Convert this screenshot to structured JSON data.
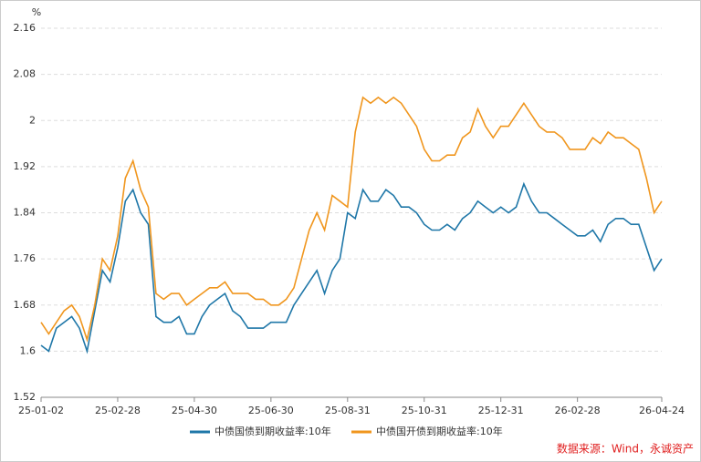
{
  "chart_data": {
    "type": "line",
    "y_label": "%",
    "categories": [
      "25-01-02",
      null,
      null,
      null,
      null,
      null,
      null,
      null,
      null,
      null,
      "25-02-28",
      null,
      null,
      null,
      null,
      null,
      null,
      null,
      null,
      null,
      "25-04-30",
      null,
      null,
      null,
      null,
      null,
      null,
      null,
      null,
      null,
      "25-06-30",
      null,
      null,
      null,
      null,
      null,
      null,
      null,
      null,
      null,
      "25-08-31",
      null,
      null,
      null,
      null,
      null,
      null,
      null,
      null,
      null,
      "25-10-31",
      null,
      null,
      null,
      null,
      null,
      null,
      null,
      null,
      null,
      "25-12-31",
      null,
      null,
      null,
      null,
      null,
      null,
      null,
      null,
      null,
      "26-02-28",
      null,
      null,
      null,
      null,
      null,
      null,
      null,
      null,
      null,
      null,
      "26-04-24"
    ],
    "series": [
      {
        "name": "中债国债到期收益率:10年",
        "color": "#1f77a8",
        "values": [
          1.61,
          1.6,
          1.64,
          1.65,
          1.66,
          1.64,
          1.6,
          1.67,
          1.74,
          1.72,
          1.78,
          1.86,
          1.88,
          1.84,
          1.82,
          1.66,
          1.65,
          1.65,
          1.66,
          1.63,
          1.63,
          1.66,
          1.68,
          1.69,
          1.7,
          1.67,
          1.66,
          1.64,
          1.64,
          1.64,
          1.65,
          1.65,
          1.65,
          1.68,
          1.7,
          1.72,
          1.74,
          1.7,
          1.74,
          1.76,
          1.84,
          1.83,
          1.88,
          1.86,
          1.86,
          1.88,
          1.87,
          1.85,
          1.85,
          1.84,
          1.82,
          1.81,
          1.81,
          1.82,
          1.81,
          1.83,
          1.84,
          1.86,
          1.85,
          1.84,
          1.85,
          1.84,
          1.85,
          1.89,
          1.86,
          1.84,
          1.84,
          1.83,
          1.82,
          1.81,
          1.8,
          1.8,
          1.81,
          1.79,
          1.82,
          1.83,
          1.83,
          1.82,
          1.82,
          1.78,
          1.74,
          1.76
        ]
      },
      {
        "name": "中债国开债到期收益率:10年",
        "color": "#f0961e",
        "values": [
          1.65,
          1.63,
          1.65,
          1.67,
          1.68,
          1.66,
          1.62,
          1.68,
          1.76,
          1.74,
          1.8,
          1.9,
          1.93,
          1.88,
          1.85,
          1.7,
          1.69,
          1.7,
          1.7,
          1.68,
          1.69,
          1.7,
          1.71,
          1.71,
          1.72,
          1.7,
          1.7,
          1.7,
          1.69,
          1.69,
          1.68,
          1.68,
          1.69,
          1.71,
          1.76,
          1.81,
          1.84,
          1.81,
          1.87,
          1.86,
          1.85,
          1.98,
          2.04,
          2.03,
          2.04,
          2.03,
          2.04,
          2.03,
          2.01,
          1.99,
          1.95,
          1.93,
          1.93,
          1.94,
          1.94,
          1.97,
          1.98,
          2.02,
          1.99,
          1.97,
          1.99,
          1.99,
          2.01,
          2.03,
          2.01,
          1.99,
          1.98,
          1.98,
          1.97,
          1.95,
          1.95,
          1.95,
          1.97,
          1.96,
          1.98,
          1.97,
          1.97,
          1.96,
          1.95,
          1.9,
          1.84,
          1.86
        ]
      }
    ],
    "ylim": [
      1.52,
      2.16
    ],
    "yticks": [
      1.52,
      1.6,
      1.68,
      1.76,
      1.84,
      1.92,
      2,
      2.08,
      2.16
    ],
    "grid": true,
    "legend": "bottom",
    "source": "数据来源：Wind，永诚资产"
  }
}
